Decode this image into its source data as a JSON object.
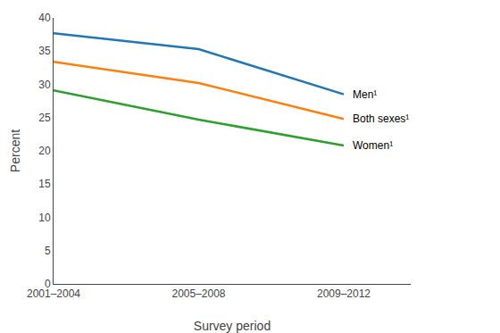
{
  "chart_data": {
    "type": "line",
    "categories": [
      "2001–2004",
      "2005–2008",
      "2009–2012"
    ],
    "series": [
      {
        "name": "Men¹",
        "values": [
          37.7,
          35.3,
          28.5
        ]
      },
      {
        "name": "Both sexes¹",
        "values": [
          33.4,
          30.2,
          24.8
        ]
      },
      {
        "name": "Women¹",
        "values": [
          29.1,
          24.7,
          20.8
        ]
      }
    ],
    "xlabel": "Survey period",
    "ylabel": "Percent",
    "ylim": [
      0,
      40
    ],
    "yticks": [
      0,
      5,
      10,
      15,
      20,
      25,
      30,
      35,
      40
    ],
    "grid": false
  }
}
